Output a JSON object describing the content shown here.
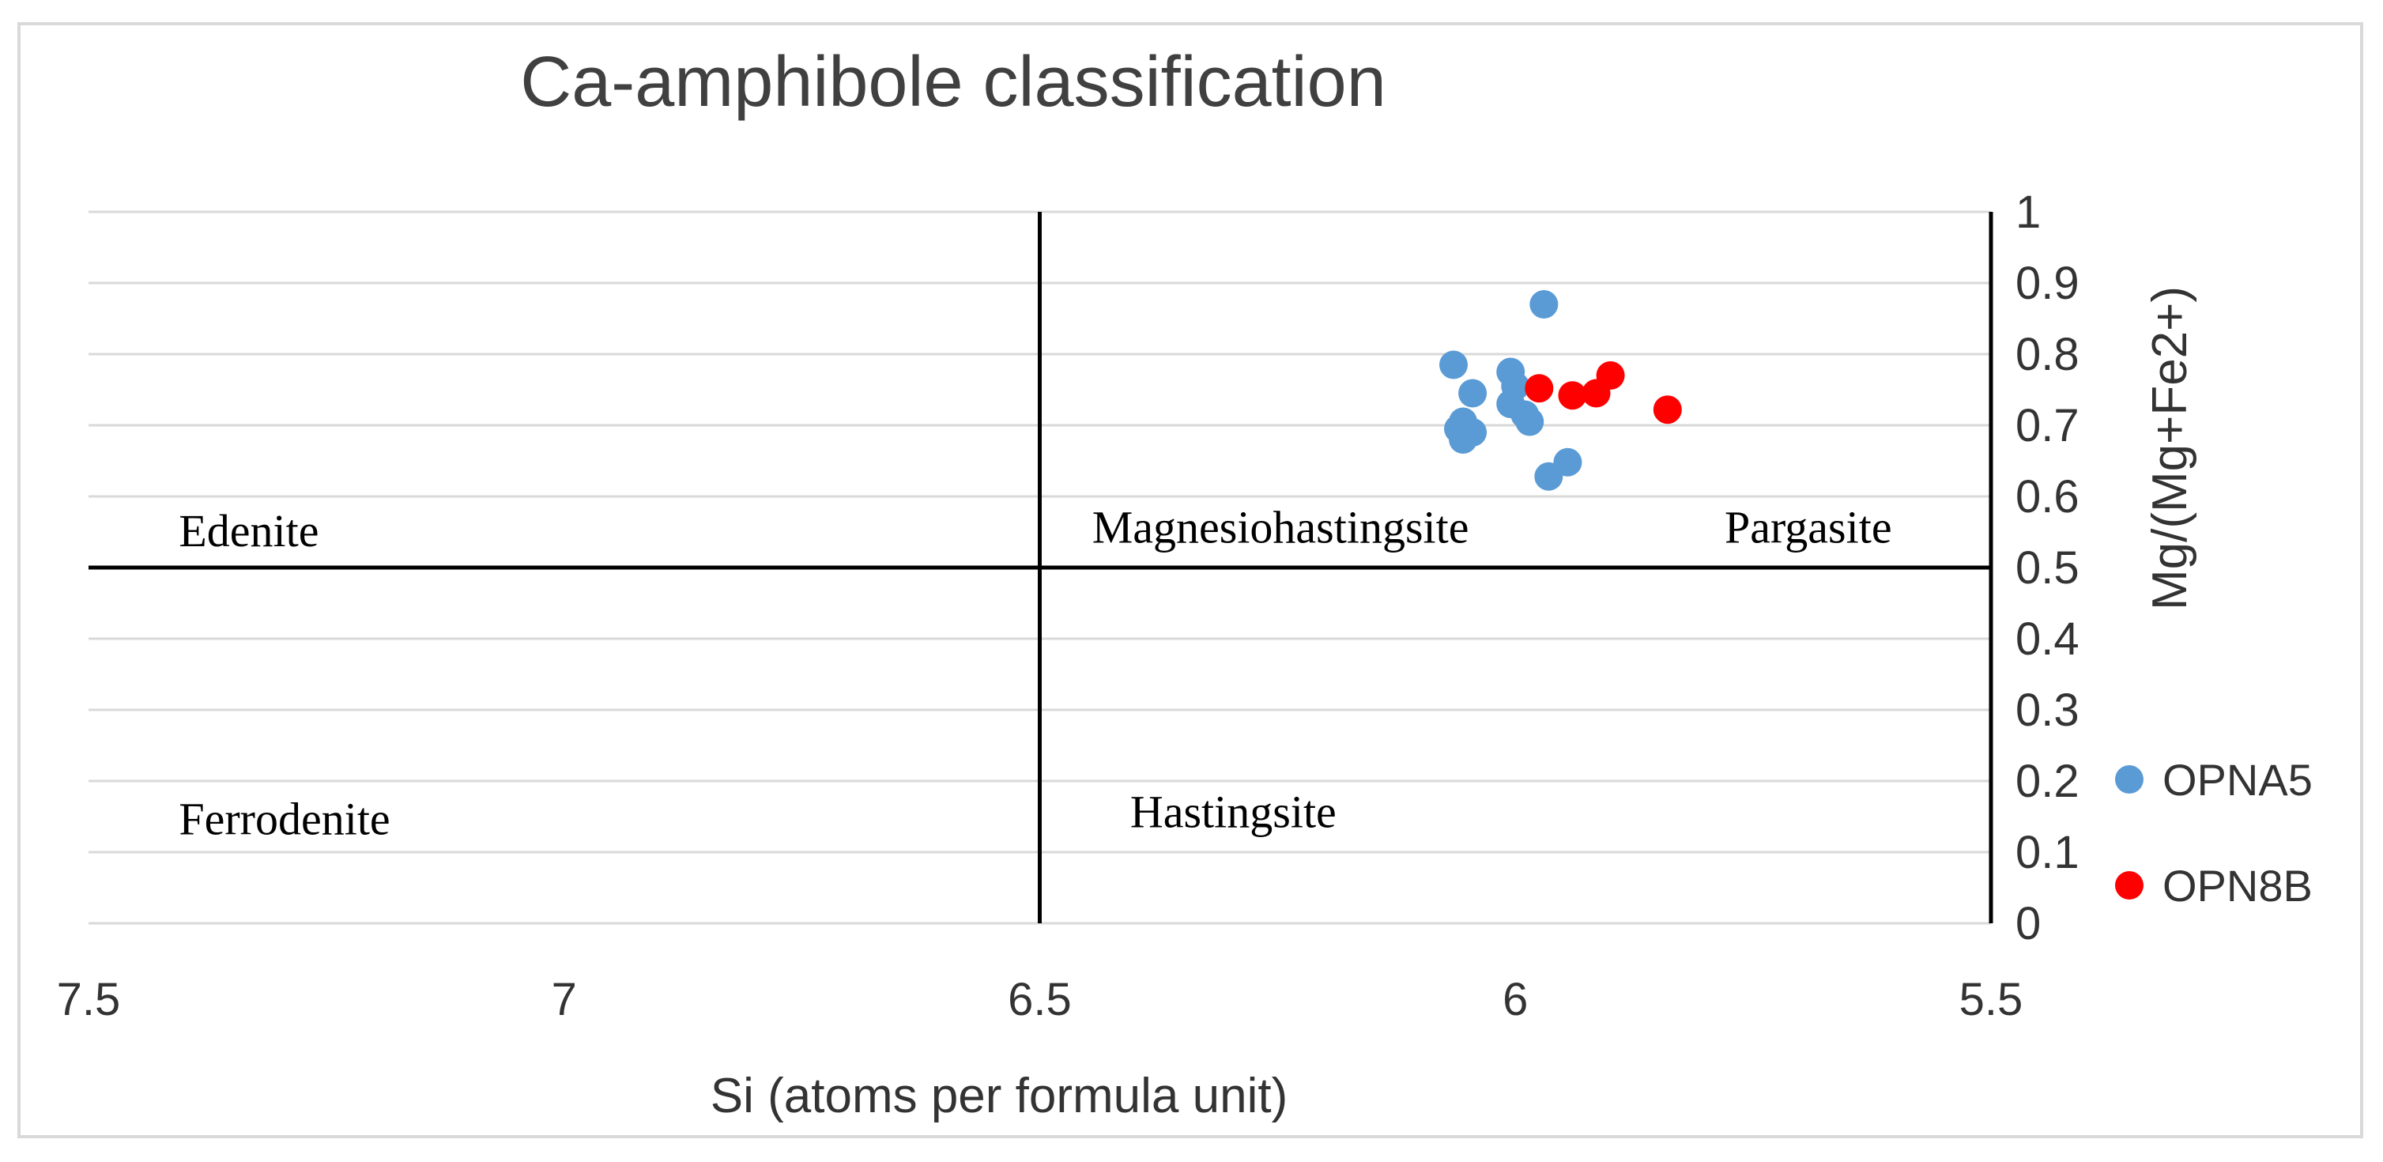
{
  "chart_data": {
    "type": "scatter",
    "title": "Ca-amphibole classification",
    "xlabel": "Si (atoms per formula unit)",
    "ylabel": "Mg/(Mg+Fe2+)",
    "xlim": [
      7.5,
      5.5
    ],
    "x_reversed": true,
    "ylim": [
      0,
      1
    ],
    "x_ticks": [
      "7.5",
      "7",
      "6.5",
      "6",
      "5.5"
    ],
    "y_ticks": [
      "0",
      "0.1",
      "0.2",
      "0.3",
      "0.4",
      "0.5",
      "0.6",
      "0.7",
      "0.8",
      "0.9",
      "1"
    ],
    "y_axis_side": "right",
    "grid": true,
    "legend_position": "right",
    "boundaries": {
      "x": [
        6.5,
        5.5
      ],
      "y": [
        0.5
      ]
    },
    "regions": [
      {
        "label": "Edenite",
        "x": 7.405,
        "y": 0.53
      },
      {
        "label": "Magnesiohastingsite",
        "x": 6.445,
        "y": 0.535
      },
      {
        "label": "Pargasite",
        "x": 5.78,
        "y": 0.535
      },
      {
        "label": "Ferrodenite",
        "x": 7.405,
        "y": 0.125
      },
      {
        "label": "Hastingsite",
        "x": 6.405,
        "y": 0.135
      }
    ],
    "series": [
      {
        "name": "OPNA5",
        "color": "#5b9bd5",
        "points": [
          [
            6.065,
            0.785
          ],
          [
            6.045,
            0.745
          ],
          [
            6.055,
            0.705
          ],
          [
            6.06,
            0.695
          ],
          [
            6.045,
            0.69
          ],
          [
            6.055,
            0.68
          ],
          [
            6.005,
            0.775
          ],
          [
            6.0,
            0.755
          ],
          [
            6.005,
            0.73
          ],
          [
            5.99,
            0.715
          ],
          [
            5.985,
            0.705
          ],
          [
            5.97,
            0.87
          ],
          [
            5.945,
            0.648
          ],
          [
            5.965,
            0.628
          ]
        ]
      },
      {
        "name": "OPN8B",
        "color": "#ff0000",
        "points": [
          [
            5.975,
            0.752
          ],
          [
            5.94,
            0.742
          ],
          [
            5.915,
            0.745
          ],
          [
            5.9,
            0.77
          ],
          [
            5.84,
            0.722
          ]
        ]
      }
    ]
  }
}
